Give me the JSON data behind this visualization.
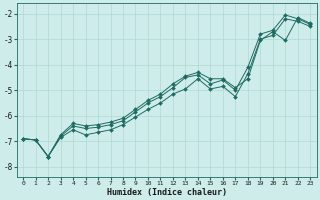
{
  "xlabel": "Humidex (Indice chaleur)",
  "bg_color": "#ceecea",
  "grid_color": "#aed8d4",
  "line_color": "#1e6b62",
  "marker_color": "#1e6b62",
  "xlim": [
    -0.5,
    23.5
  ],
  "ylim": [
    -8.4,
    -1.6
  ],
  "xticks": [
    0,
    1,
    2,
    3,
    4,
    5,
    6,
    7,
    8,
    9,
    10,
    11,
    12,
    13,
    14,
    15,
    16,
    17,
    18,
    19,
    20,
    21,
    22,
    23
  ],
  "yticks": [
    -8,
    -7,
    -6,
    -5,
    -4,
    -3,
    -2
  ],
  "series1_x": [
    0,
    1,
    2,
    3,
    4,
    5,
    6,
    7,
    8,
    9,
    10,
    11,
    12,
    13,
    14,
    15,
    16,
    17,
    18,
    19,
    20,
    21,
    22,
    23
  ],
  "series1_y": [
    -6.9,
    -6.95,
    -7.6,
    -6.85,
    -6.55,
    -6.75,
    -6.65,
    -6.55,
    -6.35,
    -6.05,
    -5.75,
    -5.5,
    -5.15,
    -4.95,
    -4.55,
    -4.95,
    -4.85,
    -5.25,
    -4.35,
    -3.0,
    -2.85,
    -2.2,
    -2.3,
    -2.5
  ],
  "series2_x": [
    0,
    1,
    2,
    3,
    4,
    5,
    6,
    7,
    8,
    9,
    10,
    11,
    12,
    13,
    14,
    15,
    16,
    17,
    18,
    19,
    20,
    21,
    22,
    23
  ],
  "series2_y": [
    -6.9,
    -6.95,
    -7.6,
    -6.8,
    -6.4,
    -6.5,
    -6.45,
    -6.35,
    -6.2,
    -5.85,
    -5.5,
    -5.25,
    -4.9,
    -4.5,
    -4.4,
    -4.75,
    -4.6,
    -5.0,
    -4.1,
    -2.8,
    -2.65,
    -2.05,
    -2.2,
    -2.42
  ],
  "series3_x": [
    0,
    1,
    2,
    3,
    4,
    5,
    6,
    7,
    8,
    9,
    10,
    11,
    12,
    13,
    14,
    15,
    16,
    17,
    18,
    19,
    20,
    21,
    22,
    23
  ],
  "series3_y": [
    -6.9,
    -6.95,
    -7.6,
    -6.75,
    -6.3,
    -6.4,
    -6.35,
    -6.25,
    -6.1,
    -5.75,
    -5.4,
    -5.15,
    -4.75,
    -4.45,
    -4.3,
    -4.55,
    -4.55,
    -4.9,
    -4.55,
    -3.05,
    -2.7,
    -3.05,
    -2.15,
    -2.38
  ]
}
